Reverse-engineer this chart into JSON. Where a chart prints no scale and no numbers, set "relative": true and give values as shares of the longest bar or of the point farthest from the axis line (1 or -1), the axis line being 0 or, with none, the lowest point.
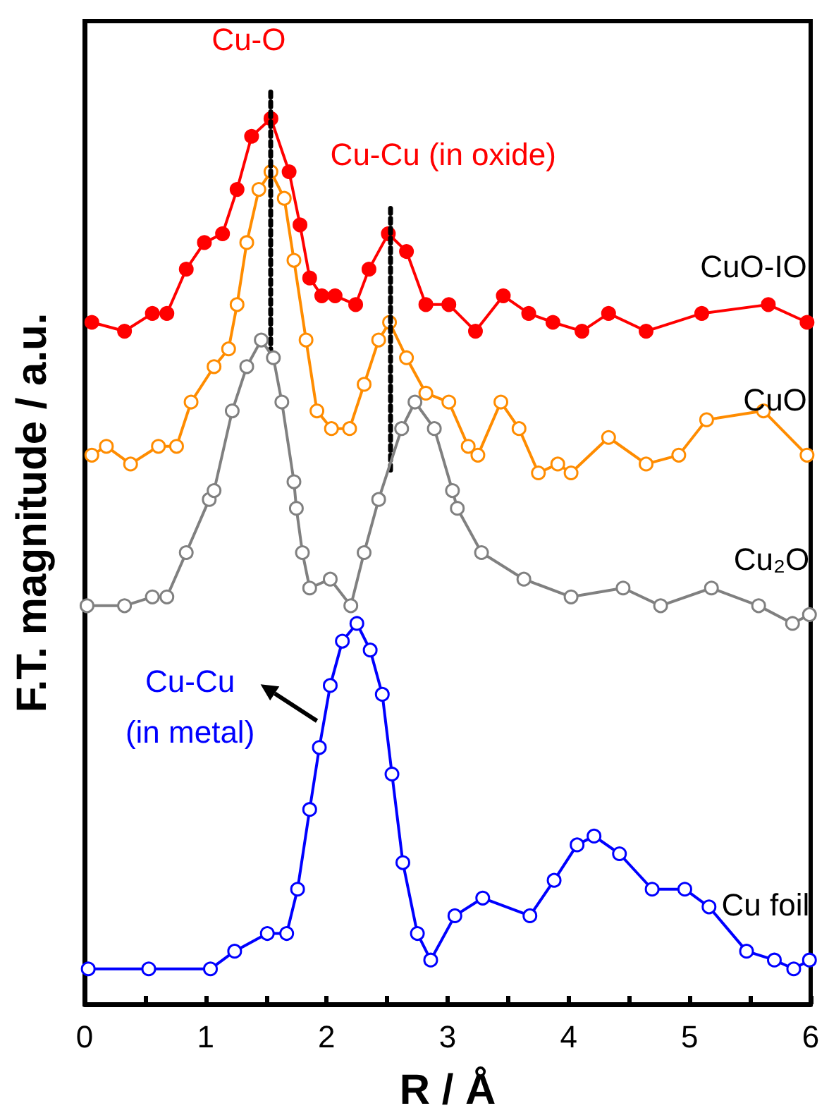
{
  "chart_data": {
    "type": "line",
    "relative": true,
    "marker": "circle",
    "legend": false,
    "grid": false,
    "xlabel": "R / Å",
    "ylabel": "F.T. magnitude / a.u.",
    "xlim": [
      0,
      6
    ],
    "xticks": [
      0,
      {
        "value": 0.5,
        "label": null
      },
      1,
      {
        "value": 1.5,
        "label": null
      },
      2,
      {
        "value": 2.5,
        "label": null
      },
      3,
      {
        "value": 3.5,
        "label": null
      },
      4,
      {
        "value": 4.5,
        "label": null
      },
      5,
      {
        "value": 5.5,
        "label": null
      },
      6
    ],
    "series": [
      {
        "name": "CuO-IO",
        "color": "#ff0000",
        "x": [
          0.06,
          0.33,
          0.56,
          0.68,
          0.84,
          0.99,
          1.14,
          1.26,
          1.38,
          1.54,
          1.69,
          1.78,
          1.86,
          1.96,
          2.07,
          2.24,
          2.35,
          2.51,
          2.66,
          2.82,
          3.01,
          3.23,
          3.46,
          3.67,
          3.87,
          4.11,
          4.33,
          4.64,
          5.1,
          5.65,
          5.97
        ],
        "values": [
          0.77,
          0.76,
          0.78,
          0.78,
          0.83,
          0.86,
          0.87,
          0.92,
          0.98,
          1,
          0.94,
          0.88,
          0.82,
          0.8,
          0.8,
          0.79,
          0.83,
          0.87,
          0.85,
          0.79,
          0.79,
          0.76,
          0.8,
          0.78,
          0.77,
          0.76,
          0.78,
          0.76,
          0.78,
          0.79,
          0.77
        ]
      },
      {
        "name": "CuO",
        "color": "#ff8c00",
        "x": [
          0.06,
          0.18,
          0.38,
          0.61,
          0.76,
          0.88,
          1.07,
          1.19,
          1.26,
          1.34,
          1.44,
          1.54,
          1.65,
          1.73,
          1.83,
          1.92,
          2.04,
          2.19,
          2.31,
          2.43,
          2.52,
          2.66,
          2.82,
          3.01,
          3.17,
          3.25,
          3.44,
          3.59,
          3.75,
          3.91,
          4.02,
          4.33,
          4.64,
          4.91,
          5.14,
          5.61,
          5.97
        ],
        "values": [
          0.62,
          0.63,
          0.61,
          0.63,
          0.63,
          0.68,
          0.72,
          0.74,
          0.79,
          0.86,
          0.92,
          0.94,
          0.91,
          0.84,
          0.75,
          0.67,
          0.65,
          0.65,
          0.7,
          0.75,
          0.77,
          0.73,
          0.69,
          0.68,
          0.63,
          0.62,
          0.68,
          0.65,
          0.6,
          0.61,
          0.6,
          0.64,
          0.61,
          0.62,
          0.66,
          0.67,
          0.62
        ]
      },
      {
        "name": "Cu₂O",
        "color": "#808080",
        "x": [
          0.02,
          0.33,
          0.56,
          0.68,
          0.84,
          1.03,
          1.07,
          1.22,
          1.34,
          1.46,
          1.56,
          1.63,
          1.73,
          1.75,
          1.8,
          1.86,
          2.03,
          2.2,
          2.31,
          2.43,
          2.62,
          2.73,
          2.89,
          3.04,
          3.08,
          3.28,
          3.63,
          4.02,
          4.45,
          4.76,
          5.18,
          5.57,
          5.85,
          5.99
        ],
        "values": [
          0.45,
          0.45,
          0.46,
          0.46,
          0.51,
          0.57,
          0.58,
          0.67,
          0.72,
          0.75,
          0.73,
          0.68,
          0.59,
          0.56,
          0.51,
          0.47,
          0.48,
          0.45,
          0.51,
          0.57,
          0.65,
          0.68,
          0.65,
          0.58,
          0.56,
          0.51,
          0.48,
          0.46,
          0.47,
          0.45,
          0.47,
          0.45,
          0.43,
          0.44
        ]
      },
      {
        "name": "Cu foil",
        "color": "#0000ff",
        "x": [
          0.03,
          0.53,
          1.04,
          1.24,
          1.51,
          1.67,
          1.76,
          1.86,
          1.94,
          2.03,
          2.13,
          2.25,
          2.36,
          2.46,
          2.54,
          2.63,
          2.75,
          2.86,
          3.06,
          3.29,
          3.68,
          3.88,
          4.07,
          4.21,
          4.42,
          4.69,
          4.96,
          5.16,
          5.47,
          5.7,
          5.86,
          5.99
        ],
        "values": [
          0.04,
          0.04,
          0.04,
          0.06,
          0.08,
          0.08,
          0.13,
          0.22,
          0.29,
          0.36,
          0.41,
          0.43,
          0.4,
          0.35,
          0.26,
          0.16,
          0.08,
          0.05,
          0.1,
          0.12,
          0.1,
          0.14,
          0.18,
          0.19,
          0.17,
          0.13,
          0.13,
          0.11,
          0.06,
          0.05,
          0.04,
          0.05
        ]
      }
    ],
    "ref_lines": [
      {
        "axis": "x",
        "value": 1.54,
        "color": "#000000",
        "line_style": "dotted"
      },
      {
        "axis": "x",
        "value": 2.52,
        "color": "#000000",
        "line_style": "dotted"
      }
    ],
    "annotations": [
      {
        "text": "Cu-O",
        "x": 1.54,
        "y": 1
      },
      {
        "text": "Cu-Cu (in oxide)",
        "x": 2.52,
        "y": 0.87
      },
      {
        "text": "Cu-Cu\n(in metal)",
        "x": 1.92,
        "y": 0.32
      }
    ]
  }
}
